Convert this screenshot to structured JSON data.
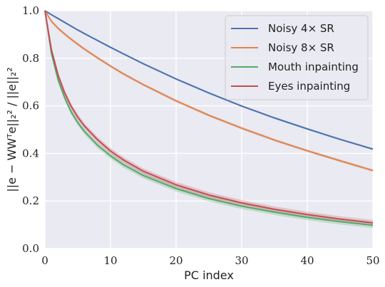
{
  "chart_data": {
    "type": "line",
    "title": "",
    "xlabel": "PC index",
    "ylabel": "||e − WWᵀe||₂² / ||e||₂²",
    "xlim": [
      0,
      50
    ],
    "ylim": [
      0.0,
      1.0
    ],
    "x_ticks": [
      0,
      10,
      20,
      30,
      40,
      50
    ],
    "y_ticks": [
      "0.0",
      "0.2",
      "0.4",
      "0.6",
      "0.8",
      "1.0"
    ],
    "grid": true,
    "legend_position": "top-right",
    "x": [
      0,
      1,
      2,
      3,
      4,
      5,
      6,
      8,
      10,
      12,
      15,
      20,
      25,
      30,
      35,
      40,
      45,
      50
    ],
    "series": [
      {
        "name": "Noisy 4× SR",
        "color": "#4c72b0",
        "values": [
          1.0,
          0.983,
          0.967,
          0.951,
          0.935,
          0.919,
          0.904,
          0.875,
          0.846,
          0.818,
          0.777,
          0.713,
          0.654,
          0.599,
          0.549,
          0.503,
          0.459,
          0.418
        ],
        "band": 0.004
      },
      {
        "name": "Noisy 8× SR",
        "color": "#dd8452",
        "values": [
          1.0,
          0.955,
          0.926,
          0.902,
          0.88,
          0.859,
          0.839,
          0.802,
          0.767,
          0.734,
          0.689,
          0.621,
          0.56,
          0.506,
          0.456,
          0.411,
          0.369,
          0.328
        ],
        "band": 0.006
      },
      {
        "name": "Mouth inpainting",
        "color": "#55a868",
        "values": [
          1.0,
          0.82,
          0.71,
          0.635,
          0.575,
          0.53,
          0.493,
          0.435,
          0.39,
          0.352,
          0.307,
          0.252,
          0.21,
          0.178,
          0.153,
          0.131,
          0.113,
          0.098
        ],
        "band": 0.012
      },
      {
        "name": "Eyes inpainting",
        "color": "#c44e52",
        "values": [
          1.0,
          0.835,
          0.73,
          0.655,
          0.598,
          0.553,
          0.516,
          0.458,
          0.41,
          0.372,
          0.325,
          0.268,
          0.225,
          0.192,
          0.165,
          0.143,
          0.124,
          0.108
        ],
        "band": 0.012
      }
    ]
  }
}
